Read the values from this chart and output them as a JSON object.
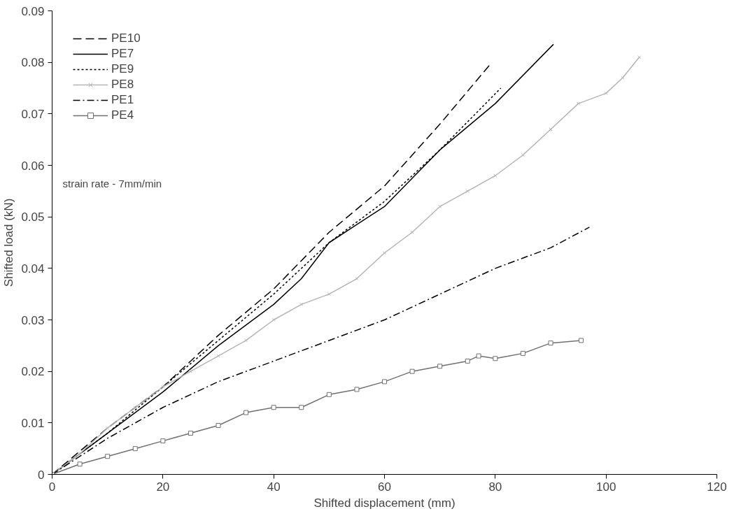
{
  "chart_data": {
    "type": "line",
    "xlabel": "Shifted displacement (mm)",
    "ylabel": "Shifted load (kN)",
    "annotations": [
      "strain rate - 7mm/min"
    ],
    "xlim": [
      0,
      120
    ],
    "xticks": [
      0,
      20,
      40,
      60,
      80,
      100,
      120
    ],
    "ylim": [
      0,
      0.09
    ],
    "yticks": [
      0,
      0.01,
      0.02,
      0.03,
      0.04,
      0.05,
      0.06,
      0.07,
      0.08,
      0.09
    ],
    "grid": false,
    "legend": "top left",
    "series": [
      {
        "name": "PE10",
        "color": "#000000",
        "line_style": "dashed",
        "marker": "none",
        "x": [
          0,
          10,
          20,
          30,
          40,
          50,
          60,
          70,
          79
        ],
        "values": [
          0,
          0.009,
          0.017,
          0.027,
          0.036,
          0.047,
          0.056,
          0.068,
          0.0795
        ]
      },
      {
        "name": "PE7",
        "color": "#000000",
        "line_style": "solid",
        "marker": "none",
        "x": [
          0,
          10,
          20,
          30,
          40,
          45,
          50,
          60,
          70,
          80,
          90.5
        ],
        "values": [
          0,
          0.008,
          0.016,
          0.025,
          0.033,
          0.038,
          0.045,
          0.052,
          0.063,
          0.072,
          0.0835
        ]
      },
      {
        "name": "PE9",
        "color": "#000000",
        "line_style": "dotted",
        "marker": "none",
        "x": [
          0,
          10,
          20,
          30,
          40,
          50,
          60,
          70,
          81
        ],
        "values": [
          0,
          0.008,
          0.017,
          0.026,
          0.035,
          0.045,
          0.053,
          0.063,
          0.075
        ]
      },
      {
        "name": "PE8",
        "color": "#b4b4b4",
        "line_style": "solid",
        "marker": "cross",
        "x": [
          0,
          5,
          10,
          15,
          20,
          25,
          30,
          35,
          40,
          45,
          50,
          55,
          60,
          65,
          70,
          75,
          80,
          85,
          90,
          95,
          100,
          103,
          106
        ],
        "values": [
          0,
          0.004,
          0.009,
          0.013,
          0.017,
          0.02,
          0.023,
          0.026,
          0.03,
          0.033,
          0.035,
          0.038,
          0.043,
          0.047,
          0.052,
          0.055,
          0.058,
          0.062,
          0.067,
          0.072,
          0.074,
          0.077,
          0.081
        ]
      },
      {
        "name": "PE1",
        "color": "#000000",
        "line_style": "dashdot",
        "marker": "none",
        "x": [
          0,
          10,
          20,
          30,
          40,
          50,
          60,
          70,
          80,
          90,
          97
        ],
        "values": [
          0,
          0.007,
          0.013,
          0.018,
          0.022,
          0.026,
          0.03,
          0.035,
          0.04,
          0.044,
          0.048
        ]
      },
      {
        "name": "PE4",
        "color": "#707070",
        "line_style": "solid",
        "marker": "square",
        "x": [
          0,
          5,
          10,
          15,
          20,
          25,
          30,
          35,
          40,
          45,
          50,
          55,
          60,
          65,
          70,
          75,
          77,
          80,
          85,
          90,
          95.5
        ],
        "values": [
          0,
          0.002,
          0.0035,
          0.005,
          0.0065,
          0.008,
          0.0095,
          0.012,
          0.013,
          0.013,
          0.0155,
          0.0165,
          0.018,
          0.02,
          0.021,
          0.022,
          0.023,
          0.0225,
          0.0235,
          0.0255,
          0.026
        ]
      }
    ]
  }
}
